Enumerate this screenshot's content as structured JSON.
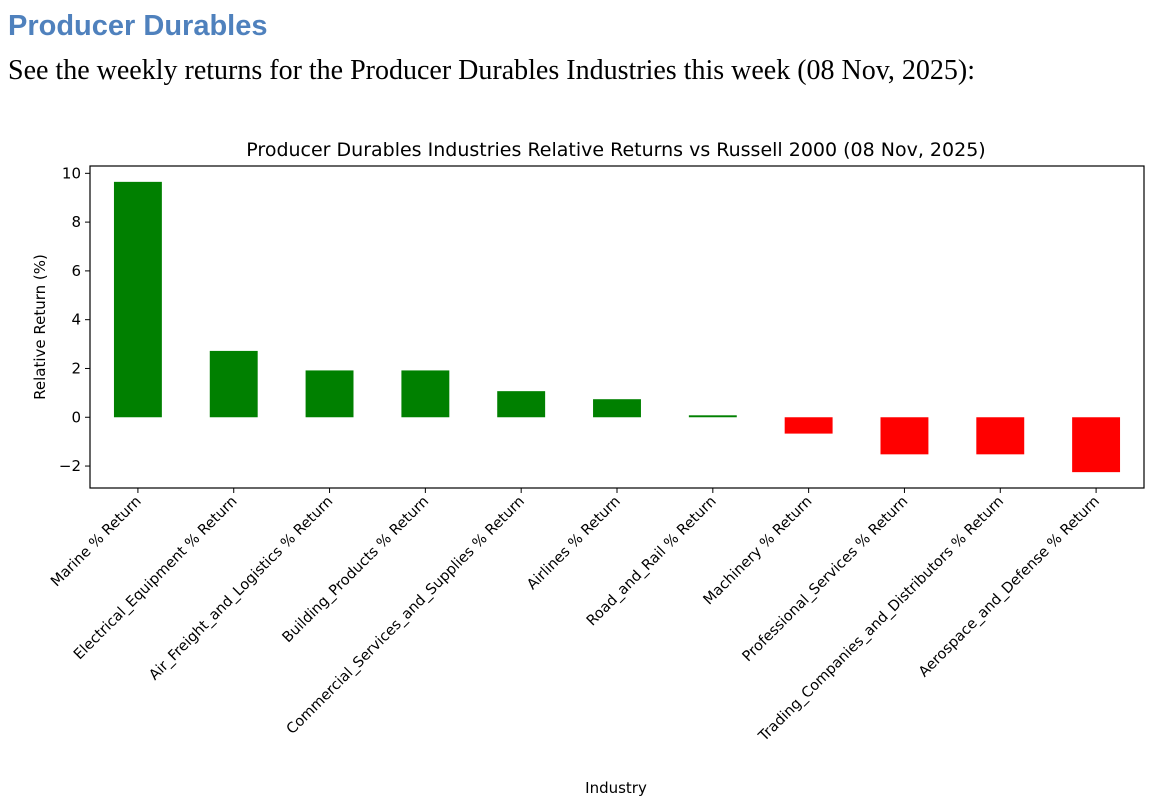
{
  "page": {
    "heading": "Producer Durables",
    "intro": "See the weekly returns for the Producer Durables Industries this week (08 Nov, 2025):"
  },
  "chart_data": {
    "type": "bar",
    "title": "Producer Durables Industries Relative Returns vs Russell 2000 (08 Nov, 2025)",
    "xlabel": "Industry",
    "ylabel": "Relative Return (%)",
    "ylim": [
      -2.9,
      10.3
    ],
    "yticks": [
      -2,
      0,
      2,
      4,
      6,
      8,
      10
    ],
    "ytick_labels": [
      "−2",
      "0",
      "2",
      "4",
      "6",
      "8",
      "10"
    ],
    "categories": [
      "Marine % Return",
      "Electrical_Equipment % Return",
      "Air_Freight_and_Logistics % Return",
      "Building_Products % Return",
      "Commercial_Services_and_Supplies % Return",
      "Airlines % Return",
      "Road_and_Rail % Return",
      "Machinery % Return",
      "Professional_Services % Return",
      "Trading_Companies_and_Distributors % Return",
      "Aerospace_and_Defense % Return"
    ],
    "values": [
      9.65,
      2.72,
      1.92,
      1.92,
      1.07,
      0.74,
      0.08,
      -0.67,
      -1.52,
      -1.52,
      -2.25
    ],
    "positive_color": "#008000",
    "negative_color": "#ff0000",
    "grid": false,
    "legend": false
  }
}
